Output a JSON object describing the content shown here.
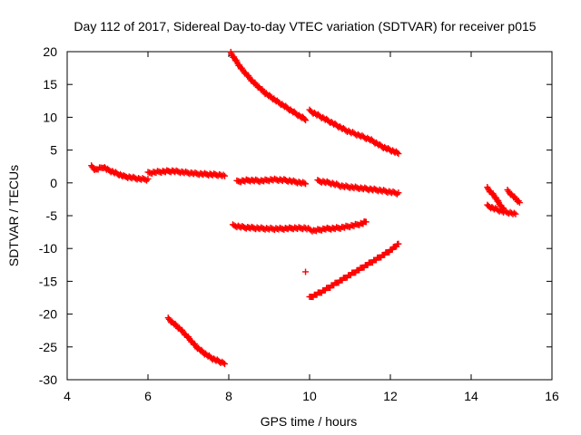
{
  "chart_data": {
    "type": "scatter",
    "title": "Day 112 of 2017, Sidereal Day-to-day VTEC variation (SDTVAR) for receiver p015",
    "xlabel": "GPS time / hours",
    "ylabel": "SDTVAR / TECUs",
    "xlim": [
      4,
      16
    ],
    "ylim": [
      -30,
      20
    ],
    "xticks": [
      "4",
      "6",
      "8",
      "10",
      "12",
      "14",
      "16"
    ],
    "yticks": [
      "-30",
      "-25",
      "-20",
      "-15",
      "-10",
      "-5",
      "0",
      "5",
      "10",
      "15",
      "20"
    ],
    "grid": false,
    "marker": "plus",
    "color": "#ff0000",
    "series": [
      {
        "x": [
          4.6,
          4.7,
          4.8,
          4.9,
          5.0,
          5.2,
          5.4,
          5.6,
          5.8,
          6.0
        ],
        "y": [
          2.5,
          2.0,
          2.2,
          2.4,
          2.0,
          1.5,
          1.0,
          0.8,
          0.6,
          0.5
        ]
      },
      {
        "x": [
          6.0,
          6.3,
          6.6,
          6.9,
          7.2,
          7.5,
          7.8,
          7.9
        ],
        "y": [
          1.5,
          1.7,
          1.8,
          1.6,
          1.4,
          1.3,
          1.2,
          1.0
        ]
      },
      {
        "x": [
          6.5,
          6.8,
          7.0,
          7.2,
          7.4,
          7.6,
          7.8,
          7.9
        ],
        "y": [
          -20.7,
          -22.3,
          -23.6,
          -25.0,
          -26.0,
          -26.8,
          -27.3,
          -27.5
        ]
      },
      {
        "x": [
          8.05,
          8.3,
          8.6,
          8.9,
          9.2,
          9.5,
          9.8,
          9.9
        ],
        "y": [
          19.8,
          17.5,
          15.4,
          13.7,
          12.4,
          11.2,
          10.0,
          9.7
        ]
      },
      {
        "x": [
          10.0,
          10.3,
          10.6,
          10.9,
          11.2,
          11.5,
          11.8,
          12.0,
          12.2
        ],
        "y": [
          11.0,
          10.0,
          9.0,
          8.0,
          7.3,
          6.6,
          5.5,
          5.0,
          4.5
        ]
      },
      {
        "x": [
          8.2,
          8.5,
          8.8,
          9.1,
          9.4,
          9.7,
          9.9
        ],
        "y": [
          0.2,
          0.4,
          0.3,
          0.5,
          0.4,
          0.1,
          -0.1
        ]
      },
      {
        "x": [
          10.2,
          10.5,
          10.8,
          11.1,
          11.4,
          11.7,
          12.0,
          12.2
        ],
        "y": [
          0.3,
          0.0,
          -0.5,
          -0.7,
          -0.9,
          -1.1,
          -1.4,
          -1.6
        ]
      },
      {
        "x": [
          8.1,
          8.4,
          8.7,
          9.0,
          9.3,
          9.6,
          9.9,
          10.1,
          10.4,
          10.7,
          11.0,
          11.3,
          11.4
        ],
        "y": [
          -6.5,
          -6.8,
          -6.9,
          -7.0,
          -7.0,
          -6.9,
          -6.9,
          -7.3,
          -7.0,
          -6.9,
          -6.6,
          -6.2,
          -5.9
        ]
      },
      {
        "x": [
          10.0,
          10.3,
          10.6,
          10.9,
          11.2,
          11.5,
          11.8,
          12.0,
          12.2
        ],
        "y": [
          -17.5,
          -16.6,
          -15.5,
          -14.4,
          -13.3,
          -12.2,
          -11.1,
          -10.3,
          -9.3
        ]
      },
      {
        "x": [
          9.9
        ],
        "y": [
          -13.7
        ]
      },
      {
        "x": [
          14.4,
          14.5,
          14.6,
          14.7,
          14.8
        ],
        "y": [
          -0.8,
          -1.5,
          -2.2,
          -3.2,
          -4.0
        ]
      },
      {
        "x": [
          14.4,
          14.6,
          14.8,
          15.0,
          15.1
        ],
        "y": [
          -3.5,
          -4.0,
          -4.4,
          -4.6,
          -4.8
        ]
      },
      {
        "x": [
          14.9,
          15.0,
          15.1,
          15.2
        ],
        "y": [
          -1.2,
          -1.8,
          -2.4,
          -3.0
        ]
      }
    ]
  }
}
